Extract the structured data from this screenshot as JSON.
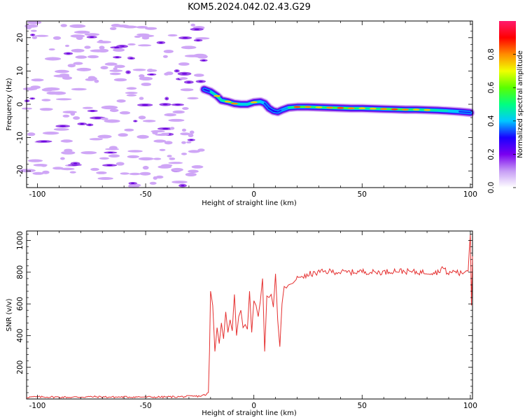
{
  "page": {
    "title": "KOM5.2024.042.02.43.G29"
  },
  "chart_data": [
    {
      "type": "heatmap",
      "xlabel": "Height of straight line (km)",
      "ylabel": "Frequency (Hz)",
      "xlim": [
        -105,
        101
      ],
      "ylim": [
        -25,
        25
      ],
      "x_ticks": [
        -100,
        -50,
        0,
        50,
        100
      ],
      "y_ticks": [
        -20,
        -10,
        0,
        10,
        20
      ],
      "colorbar": {
        "label": "Normalized spectral amplitude",
        "range": [
          0,
          1
        ],
        "ticks": [
          "0.0",
          "0.2",
          "0.4",
          "0.6",
          "0.8"
        ],
        "colors": [
          "#ffffff",
          "#c69cf5",
          "#7a00f0",
          "#1a00ff",
          "#00c8ff",
          "#00ff80",
          "#5aff00",
          "#f0ff00",
          "#ff8c00",
          "#ff0000",
          "#ff1a6e"
        ]
      },
      "ridge": {
        "description_values": "peak frequency (Hz) vs height (km)",
        "x": [
          -23,
          -20,
          -17,
          -15,
          -12,
          -9,
          -6,
          -3,
          0,
          3,
          5,
          7,
          9,
          11,
          13,
          16,
          20,
          25,
          30,
          35,
          40,
          45,
          50,
          55,
          60,
          65,
          70,
          75,
          80,
          85,
          90,
          95,
          100
        ],
        "y": [
          4.5,
          3.8,
          2.5,
          1.2,
          0.8,
          0.2,
          0.0,
          0.0,
          0.6,
          0.8,
          0.3,
          -1.2,
          -2.0,
          -2.3,
          -1.7,
          -1.0,
          -0.8,
          -0.8,
          -0.9,
          -1.0,
          -1.1,
          -1.2,
          -1.2,
          -1.3,
          -1.4,
          -1.5,
          -1.6,
          -1.6,
          -1.7,
          -1.8,
          -2.0,
          -2.2,
          -2.5
        ],
        "amplitude": [
          0.15,
          0.4,
          0.5,
          0.45,
          0.5,
          0.55,
          0.45,
          0.4,
          0.5,
          0.45,
          0.35,
          0.3,
          0.3,
          0.3,
          0.35,
          0.4,
          0.6,
          0.55,
          0.5,
          0.55,
          0.6,
          0.55,
          0.5,
          0.5,
          0.55,
          0.6,
          0.55,
          0.5,
          0.5,
          0.45,
          0.45,
          0.35,
          0.3
        ]
      },
      "noise": {
        "x_range": [
          -105,
          -23
        ],
        "y_range": [
          -25,
          25
        ],
        "amplitude_range": [
          0.02,
          0.08
        ]
      }
    },
    {
      "type": "line",
      "xlabel": "Height of straight line (km)",
      "ylabel": "SNR (v/v)",
      "xlim": [
        -105,
        101
      ],
      "ylim": [
        0,
        1060
      ],
      "x_ticks": [
        -100,
        -50,
        0,
        50,
        100
      ],
      "y_ticks": [
        200,
        400,
        600,
        800,
        1000
      ],
      "line_color": "#e53030",
      "series": [
        {
          "x": [
            -105,
            -95,
            -85,
            -75,
            -65,
            -55,
            -45,
            -35,
            -25,
            -22,
            -21,
            -20.5,
            -20,
            -19,
            -18,
            -17,
            -16,
            -15,
            -14,
            -13,
            -12,
            -11,
            -10,
            -9,
            -8,
            -7,
            -6,
            -5,
            -4,
            -3,
            -2,
            -1,
            0,
            1,
            2,
            3,
            4,
            5,
            6,
            7,
            8,
            9,
            10,
            11,
            12,
            13,
            14,
            15,
            16,
            18,
            20,
            22,
            24,
            26,
            28,
            30,
            35,
            40,
            45,
            50,
            55,
            60,
            65,
            70,
            75,
            80,
            85,
            87,
            90,
            93,
            95,
            97,
            99,
            100,
            100.5,
            101
          ],
          "y": [
            12,
            13,
            11,
            14,
            12,
            13,
            12,
            14,
            18,
            28,
            40,
            300,
            680,
            590,
            300,
            450,
            350,
            480,
            380,
            550,
            420,
            500,
            430,
            660,
            400,
            520,
            560,
            450,
            470,
            440,
            680,
            420,
            620,
            590,
            520,
            620,
            760,
            300,
            650,
            640,
            660,
            580,
            790,
            500,
            330,
            600,
            710,
            700,
            720,
            730,
            760,
            780,
            770,
            790,
            790,
            800,
            805,
            800,
            800,
            805,
            800,
            800,
            810,
            805,
            800,
            800,
            800,
            830,
            790,
            810,
            790,
            800,
            820,
            1050,
            600,
            900
          ]
        }
      ]
    }
  ]
}
